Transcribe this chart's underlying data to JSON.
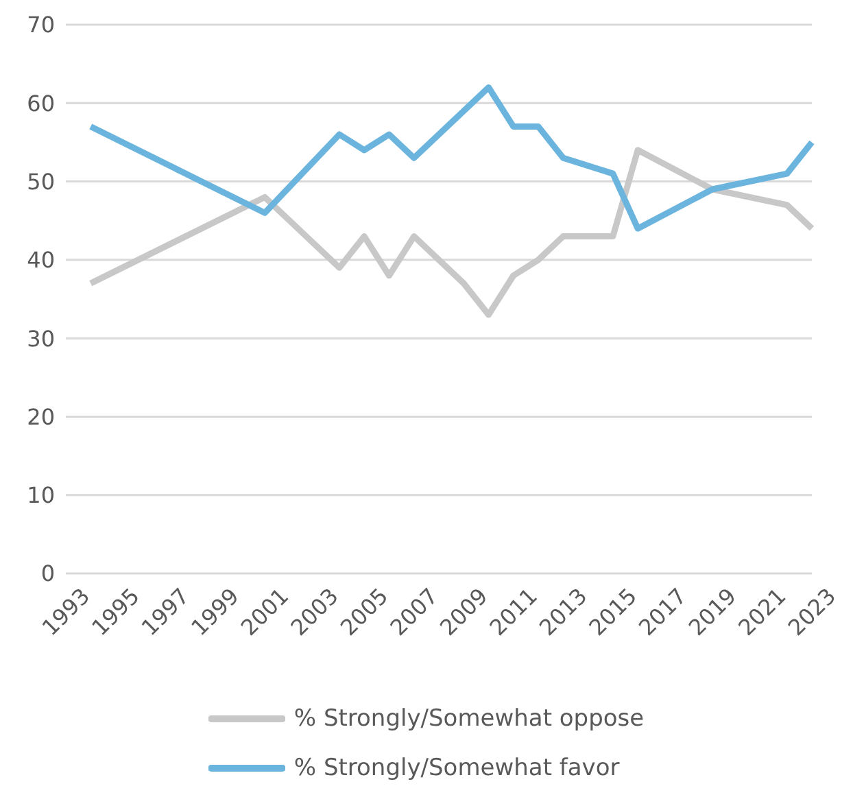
{
  "chart_data": {
    "type": "line",
    "categories": [
      "1993",
      null,
      "1995",
      null,
      "1997",
      null,
      "1999",
      null,
      "2001",
      null,
      "2003",
      null,
      "2005",
      null,
      "2007",
      null,
      "2009",
      null,
      "2011",
      null,
      "2013",
      null,
      "2015",
      null,
      "2017",
      null,
      "2019",
      null,
      "2021",
      null,
      "2023"
    ],
    "series": [
      {
        "name": "% Strongly/Somewhat oppose",
        "color": "#c8c8c8",
        "values": [
          null,
          37,
          null,
          null,
          null,
          null,
          null,
          null,
          48,
          null,
          null,
          39,
          43,
          38,
          43,
          null,
          37,
          33,
          38,
          40,
          43,
          null,
          43,
          54,
          null,
          null,
          49,
          null,
          null,
          47,
          44
        ]
      },
      {
        "name": "% Strongly/Somewhat favor",
        "color": "#6ab4de",
        "values": [
          null,
          57,
          null,
          null,
          null,
          null,
          null,
          null,
          46,
          null,
          null,
          56,
          54,
          56,
          53,
          null,
          59,
          62,
          57,
          57,
          53,
          null,
          51,
          44,
          null,
          null,
          49,
          null,
          null,
          51,
          55
        ]
      }
    ],
    "ylim": [
      0,
      70
    ],
    "yticks": [
      0,
      10,
      20,
      30,
      40,
      50,
      60,
      70
    ],
    "grid": "y",
    "legend": "bottom",
    "marker": "none",
    "line_style": "solid"
  }
}
